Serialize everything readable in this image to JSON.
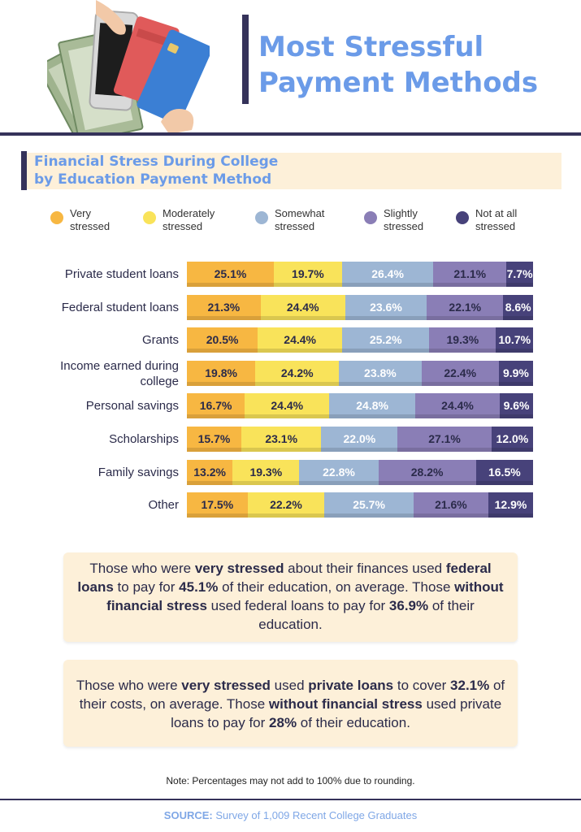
{
  "header": {
    "title_line1": "Most Stressful",
    "title_line2": "Payment Methods"
  },
  "subheader": {
    "line1": "Financial Stress During College",
    "line2": "by Education Payment Method"
  },
  "colors": {
    "very": "#f7b742",
    "moderately": "#f9e35a",
    "somewhat": "#9db6d4",
    "slightly": "#8a7eb6",
    "not_at_all": "#47427a",
    "accent": "#6b9be8",
    "dark": "#35325a",
    "callout_bg": "#fdf0d9"
  },
  "chart_data": {
    "type": "bar",
    "orientation": "horizontal",
    "stacked": true,
    "categories": [
      "Private student loans",
      "Federal student loans",
      "Grants",
      "Income earned during college",
      "Personal savings",
      "Scholarships",
      "Family savings",
      "Other"
    ],
    "series": [
      {
        "name": "Very stressed",
        "values": [
          25.1,
          21.3,
          20.5,
          19.8,
          16.7,
          15.7,
          13.2,
          17.5
        ]
      },
      {
        "name": "Moderately stressed",
        "values": [
          19.7,
          24.4,
          24.4,
          24.2,
          24.4,
          23.1,
          19.3,
          22.2
        ]
      },
      {
        "name": "Somewhat stressed",
        "values": [
          26.4,
          23.6,
          25.2,
          23.8,
          24.8,
          22.0,
          22.8,
          25.7
        ]
      },
      {
        "name": "Slightly stressed",
        "values": [
          21.1,
          22.1,
          19.3,
          22.4,
          24.4,
          27.1,
          28.2,
          21.6
        ]
      },
      {
        "name": "Not at all stressed",
        "values": [
          7.7,
          8.6,
          10.7,
          9.9,
          9.6,
          12.0,
          16.5,
          12.9
        ]
      }
    ],
    "value_labels": [
      [
        "25.1%",
        "19.7%",
        "26.4%",
        "21.1%",
        "7.7%"
      ],
      [
        "21.3%",
        "24.4%",
        "23.6%",
        "22.1%",
        "8.6%"
      ],
      [
        "20.5%",
        "24.4%",
        "25.2%",
        "19.3%",
        "10.7%"
      ],
      [
        "19.8%",
        "24.2%",
        "23.8%",
        "22.4%",
        "9.9%"
      ],
      [
        "16.7%",
        "24.4%",
        "24.8%",
        "24.4%",
        "9.6%"
      ],
      [
        "15.7%",
        "23.1%",
        "22.0%",
        "27.1%",
        "12.0%"
      ],
      [
        "13.2%",
        "19.3%",
        "22.8%",
        "28.2%",
        "16.5%"
      ],
      [
        "17.5%",
        "22.2%",
        "25.7%",
        "21.6%",
        "12.9%"
      ]
    ],
    "legend": {
      "position": "top",
      "items": [
        {
          "line1": "Very",
          "line2": "stressed"
        },
        {
          "line1": "Moderately",
          "line2": "stressed"
        },
        {
          "line1": "Somewhat",
          "line2": "stressed"
        },
        {
          "line1": "Slightly",
          "line2": "stressed"
        },
        {
          "line1": "Not at all",
          "line2": "stressed"
        }
      ]
    },
    "grid": false
  },
  "callouts": [
    {
      "parts": [
        {
          "t": "Those who were ",
          "b": false
        },
        {
          "t": "very stressed",
          "b": true
        },
        {
          "t": " about their finances used ",
          "b": false
        },
        {
          "t": "federal loans",
          "b": true
        },
        {
          "t": " to pay for ",
          "b": false
        },
        {
          "t": "45.1%",
          "b": true
        },
        {
          "t": " of their education, on average. Those ",
          "b": false
        },
        {
          "t": "without financial stress",
          "b": true
        },
        {
          "t": " used federal loans to pay for ",
          "b": false
        },
        {
          "t": "36.9%",
          "b": true
        },
        {
          "t": " of their education.",
          "b": false
        }
      ]
    },
    {
      "parts": [
        {
          "t": "Those who were ",
          "b": false
        },
        {
          "t": "very stressed",
          "b": true
        },
        {
          "t": " used ",
          "b": false
        },
        {
          "t": "private loans",
          "b": true
        },
        {
          "t": " to cover ",
          "b": false
        },
        {
          "t": "32.1%",
          "b": true
        },
        {
          "t": " of their costs, on average. Those ",
          "b": false
        },
        {
          "t": "without financial stress",
          "b": true
        },
        {
          "t": " used private loans to pay for ",
          "b": false
        },
        {
          "t": "28%",
          "b": true
        },
        {
          "t": " of their education.",
          "b": false
        }
      ]
    }
  ],
  "note": "Note: Percentages may not add to 100% due to rounding.",
  "source": {
    "label": "SOURCE:",
    "text": " Survey of 1,009 Recent College Graduates"
  }
}
